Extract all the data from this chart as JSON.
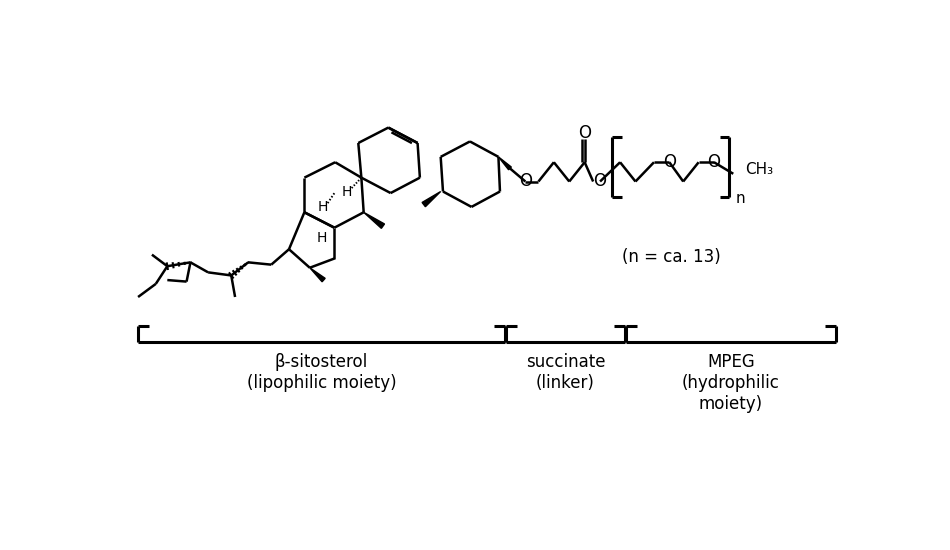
{
  "label1": "β-sitosterol\n(lipophilic moiety)",
  "label2": "succinate\n(linker)",
  "label3": "MPEG\n(hydrophilic\nmoiety)",
  "note": "(n = ca. 13)",
  "fig_w": 9.5,
  "fig_h": 5.5,
  "dpi": 100
}
